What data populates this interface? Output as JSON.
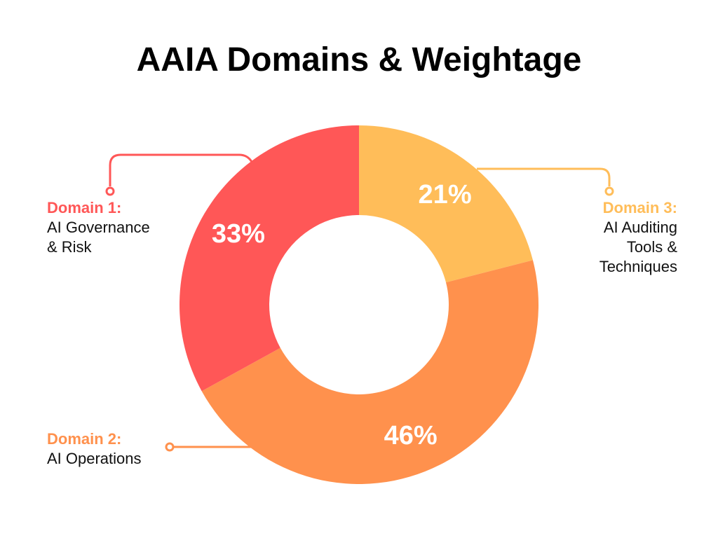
{
  "chart_data": {
    "type": "pie",
    "donut": true,
    "title": "AAIA Domains & Weightage",
    "slices": [
      {
        "label": "Domain 3:",
        "description": [
          "AI Auditing",
          "Tools &",
          "Techniques"
        ],
        "value": 21,
        "value_label": "21%",
        "color": "#FFBD59"
      },
      {
        "label": "Domain 2:",
        "description": [
          "AI Operations"
        ],
        "value": 46,
        "value_label": "46%",
        "color": "#FF914D"
      },
      {
        "label": "Domain 1:",
        "description": [
          "AI Governance",
          "& Risk"
        ],
        "value": 33,
        "value_label": "33%",
        "color": "#FF5757"
      }
    ]
  }
}
